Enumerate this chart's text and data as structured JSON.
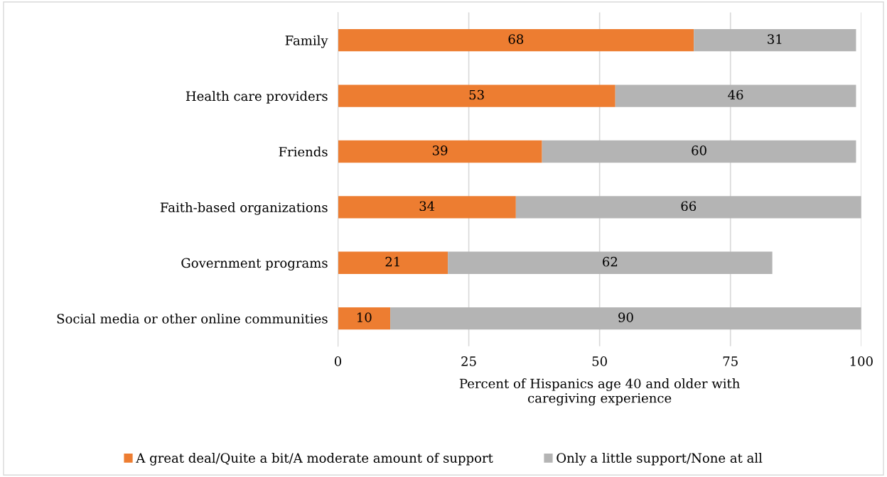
{
  "chart_data": {
    "type": "bar",
    "orientation": "horizontal",
    "stacked": true,
    "categories": [
      "Family",
      "Health care providers",
      "Friends",
      "Faith-based organizations",
      "Government programs",
      "Social media or other online communities"
    ],
    "series": [
      {
        "name": "A great deal/Quite a bit/A moderate amount of support",
        "color": "#ed7d31",
        "values": [
          68,
          53,
          39,
          34,
          21,
          10
        ]
      },
      {
        "name": "Only a little support/None at all",
        "color": "#b4b4b4",
        "values": [
          31,
          46,
          60,
          66,
          62,
          90
        ]
      }
    ],
    "xlabel": "Percent of Hispanics age 40 and older with\ncaregiving experience",
    "xlim": [
      0,
      100
    ],
    "xticks": [
      0,
      25,
      50,
      75,
      100
    ],
    "grid": "x",
    "legend": "bottom",
    "data_labels": true
  }
}
